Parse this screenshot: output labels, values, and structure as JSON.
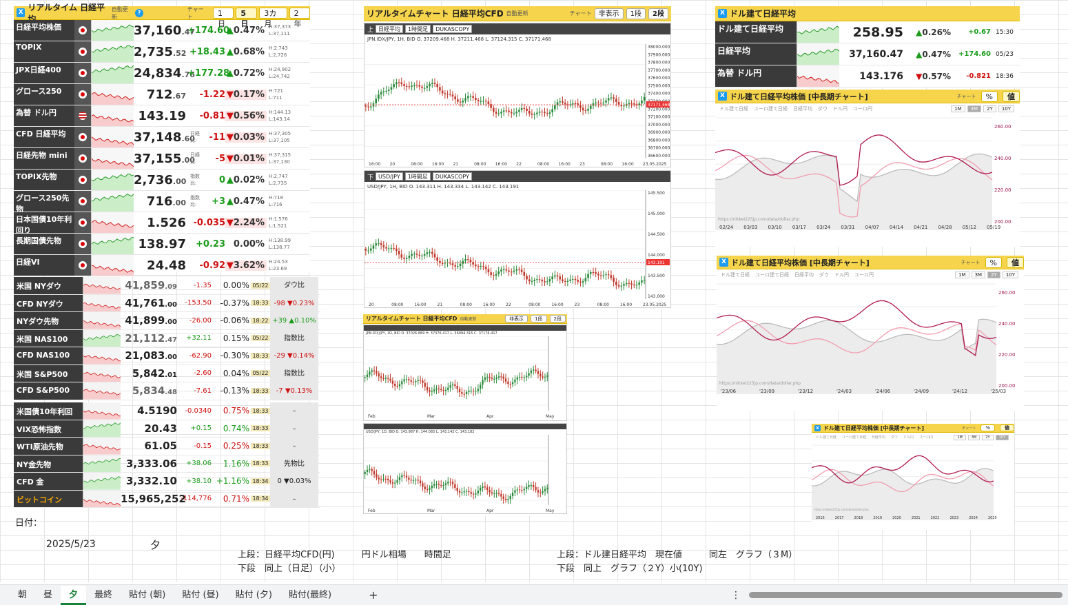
{
  "left_panel": {
    "title": "リアルタイム 日経平均",
    "auto": "自動更新",
    "help": "?",
    "chart_label": "チャート",
    "range_buttons": [
      "1日",
      "5日",
      "3カ月",
      "2年"
    ],
    "range_selected": "5日",
    "rows": [
      {
        "name": "日経平均株価",
        "sub": "寄与度",
        "date": "05/23",
        "price": "37,160",
        "dec": ".47",
        "chg": "+174.60",
        "pct": "0.47%",
        "dir": "up",
        "h": "H:37,373",
        "l": "L:37,111"
      },
      {
        "name": "TOPIX",
        "sub": "Y!",
        "date": "05/23",
        "price": "2,735",
        "dec": ".52",
        "chg": "+18.43",
        "pct": "0.68%",
        "dir": "up",
        "h": "H:2,743",
        "l": "L:2,726"
      },
      {
        "name": "JPX日経400",
        "sub": "",
        "date": "05/23",
        "price": "24,834",
        "dec": ".76",
        "chg": "+177.28",
        "pct": "0.72%",
        "dir": "up",
        "h": "H:24,902",
        "l": "L:24,742"
      },
      {
        "name": "グロース250",
        "sub": "",
        "date": "05/23",
        "price": "712",
        "dec": ".67",
        "chg": "-1.22",
        "pct": "0.17%",
        "dir": "dn",
        "h": "H:721",
        "l": "L:711"
      },
      {
        "name": "為替 ドル円",
        "sub": "為替",
        "date": "",
        "price": "143.19",
        "dec": "",
        "chg": "-0.81",
        "pct": "0.56%",
        "dir": "dn",
        "h": "H:144.13",
        "l": "L:143.14"
      },
      {
        "name": "CFD 日経平均",
        "sub": "",
        "date": "18:33",
        "price": "37,148",
        "dec": ".60",
        "chg": "-11",
        "pct": "0.03%",
        "dir": "dn",
        "label": "日経比:",
        "h": "H:37,305",
        "l": "L:37,105"
      },
      {
        "name": "日経先物 mini",
        "sub": "日経先物",
        "date": "18:33",
        "price": "37,155",
        "dec": ".00",
        "chg": "-5",
        "pct": "0.01%",
        "dir": "dn",
        "label": "日経比:",
        "h": "H:37,315",
        "l": "L:37,130"
      },
      {
        "name": "TOPIX先物",
        "sub": "",
        "date": "18:33",
        "price": "2,736",
        "dec": ".00",
        "chg": "0",
        "pct": "0.02%",
        "dir": "up",
        "label": "指数比:",
        "h": "H:2,747",
        "l": "L:2,735"
      },
      {
        "name": "グロース250先物",
        "sub": "",
        "date": "18:25",
        "price": "716",
        "dec": ".00",
        "chg": "+3",
        "pct": "0.47%",
        "dir": "up",
        "label": "指数比:",
        "h": "H:718",
        "l": "L:716"
      },
      {
        "name": "日本国債10年利回り",
        "sub": "国債 債券",
        "date": "18:31",
        "price": "1.526",
        "dec": "",
        "chg": "-0.035",
        "pct": "2.24%",
        "dir": "dn",
        "h": "H:1.576",
        "l": "L:1.521"
      },
      {
        "name": "長期国債先物",
        "sub": "",
        "date": "18:12",
        "price": "138.97",
        "dec": "",
        "chg": "+0.23",
        "pct": "0.00%",
        "dir": "flat",
        "h": "H:138.99",
        "l": "L:138.77"
      },
      {
        "name": "日経VI",
        "sub": "恐怖指数",
        "date": "",
        "price": "24.48",
        "dec": "",
        "chg": "-0.92",
        "pct": "3.62%",
        "dir": "dn",
        "h": "H:24.53",
        "l": "L:23.69"
      }
    ]
  },
  "us_panel": {
    "rows": [
      {
        "name": "米国 NYダウ",
        "price": "41,859",
        "dec": ".09",
        "chg": "-1.35",
        "pct": "0.00%",
        "dir": "dn",
        "time": "05/22",
        "ext": "ダウ比",
        "ext_dir": "na"
      },
      {
        "name": "CFD NYダウ",
        "price": "41,761",
        "dec": ".00",
        "chg": "-153.50",
        "pct": "-0.37%",
        "dir": "dn",
        "time": "18:33",
        "ext": "-98 ▼0.23%",
        "ext_dir": "dn"
      },
      {
        "name": "NYダウ先物",
        "price": "41,899",
        "dec": ".00",
        "chg": "-26.00",
        "pct": "-0.06%",
        "dir": "dn",
        "time": "18:22",
        "ext": "+39 ▲0.10%",
        "ext_dir": "up"
      },
      {
        "name": "米国 NAS100",
        "price": "21,112",
        "dec": ".47",
        "chg": "+32.11",
        "pct": "0.15%",
        "dir": "up",
        "time": "05/22",
        "ext": "指数比",
        "ext_dir": "na"
      },
      {
        "name": "CFD NAS100",
        "price": "21,083",
        "dec": ".00",
        "chg": "-62.90",
        "pct": "-0.30%",
        "dir": "dn",
        "time": "18:33",
        "ext": "-29 ▼0.14%",
        "ext_dir": "dn"
      },
      {
        "name": "米国 S&P500",
        "price": "5,842",
        "dec": ".01",
        "chg": "-2.60",
        "pct": "0.04%",
        "dir": "dn",
        "time": "05/22",
        "ext": "指数比",
        "ext_dir": "na"
      },
      {
        "name": "CFD S&P500",
        "price": "5,834",
        "dec": ".48",
        "chg": "-7.61",
        "pct": "-0.13%",
        "dir": "dn",
        "time": "18:33",
        "ext": "-7 ▼0.13%",
        "ext_dir": "dn"
      }
    ]
  },
  "misc_panel": {
    "rows": [
      {
        "name": "米国債10年利回",
        "price": "4.5190",
        "chg": "-0.0340",
        "pct": "0.75%",
        "dir": "dn",
        "time": "18:33",
        "ext": "–"
      },
      {
        "name": "VIX恐怖指数",
        "price": "20.43",
        "chg": "+0.15",
        "pct": "0.74%",
        "dir": "up",
        "time": "18:33",
        "ext": "–"
      },
      {
        "name": "WTI原油先物",
        "price": "61.05",
        "chg": "-0.15",
        "pct": "0.25%",
        "dir": "dn",
        "time": "18:33",
        "ext": "–"
      },
      {
        "name": "NY金先物",
        "price": "3,333.06",
        "chg": "+38.06",
        "pct": "1.16%",
        "dir": "up",
        "time": "18:33",
        "ext": "先物比"
      },
      {
        "name": "CFD 金",
        "price": "3,332.10",
        "chg": "+38.10",
        "pct": "+1.16%",
        "dir": "up",
        "time": "18:34",
        "ext": "0 ▼0.03%"
      },
      {
        "name": "ビットコイン",
        "price": "15,965,252",
        "chg": "-114,776",
        "pct": "0.71%",
        "dir": "dn",
        "time": "18:34",
        "ext": "–"
      }
    ]
  },
  "sheet": {
    "date_label": "日付：",
    "date_value": "2025/5/23",
    "session": "夕",
    "note_left_1": "上段：日経平均CFD(円)　　　円ドル相場　　時間足",
    "note_left_2": "下段　同上（日足）（小）",
    "note_right_1": "上段：ドル建日経平均　現在値　　　同左　グラフ（３M）",
    "note_right_2": "下段　同上　グラフ（２Y）小(10Y)"
  },
  "rt_chart": {
    "title": "リアルタイムチャート 日経平均CFD",
    "auto": "自動更新",
    "chart_label": "チャート",
    "buttons": [
      "非表示",
      "1段",
      "2段"
    ],
    "upper": {
      "tag": "上",
      "symbol": "日経平均",
      "interval": "1時間足",
      "source": "DUKASCOPY",
      "ohlc": "JPN.IDX/JPY, 1H, BID   O. 37209.468 H. 37211.468 L. 37124.315 C. 37171.468",
      "y_ticks": [
        "38000.000",
        "37900.000",
        "37800.000",
        "37700.000",
        "37600.000",
        "37500.000",
        "37400.000",
        "37300.000",
        "37200.000",
        "37100.000",
        "37000.000",
        "36900.000",
        "36800.000",
        "36700.000",
        "36600.000"
      ],
      "last": "37171.468",
      "x_ticks": [
        "16:00",
        "20",
        "08:00",
        "16:00",
        "21",
        "08:00",
        "16:00",
        "22",
        "08:00",
        "16:00",
        "23",
        "08:00",
        "16:00",
        "23.05.2025"
      ]
    },
    "lower": {
      "tag": "下",
      "symbol": "USD/JPY",
      "interval": "1時間足",
      "source": "DUKASCOPY",
      "ohlc": "USD/JPY, 1H, BID   O. 143.311 H. 143.334 L. 143.142 C. 143.191",
      "y_ticks": [
        "145.500",
        "145.000",
        "144.500",
        "144.000",
        "143.500",
        "143.000"
      ],
      "last": "143.191",
      "x_ticks": [
        "20",
        "08:00",
        "16:00",
        "21",
        "08:00",
        "16:00",
        "22",
        "08:00",
        "16:00",
        "23",
        "08:00",
        "16:00",
        "23.05.2025"
      ]
    },
    "provider": "提供元：",
    "provider_name": "DUKASCOPY"
  },
  "rt_chart_small": {
    "title": "リアルタイムチャート 日経平均CFD",
    "auto": "自動更新",
    "buttons": [
      "非表示",
      "1段",
      "2段"
    ],
    "upper_ohlc": "JPN.IDX/JPY, 1D, BID   O. 37026.889 H. 37376.417 L. 36994.315 C. 37176.417",
    "lower_ohlc": "USD/JPY, 1D, BID   O. 143.987 H. 144.083 L. 143.142 C. 143.182",
    "months": [
      "Feb",
      "Mar",
      "Apr",
      "May"
    ]
  },
  "dollar_panel": {
    "title": "ドル建て日経平均",
    "rows": [
      {
        "name": "ドル建て日経平均",
        "sub": "",
        "price": "258.95",
        "pct": "0.26%",
        "chg": "+0.67",
        "time": "15:30",
        "dir": "up"
      },
      {
        "name": "日経平均",
        "sub": "日経平均",
        "price": "37,160.47",
        "pct": "0.47%",
        "chg": "+174.60",
        "time": "05/23",
        "dir": "up"
      },
      {
        "name": "為替 ドル円",
        "sub": "FX為替",
        "price": "143.176",
        "pct": "0.57%",
        "chg": "-0.821",
        "time": "18:36",
        "dir": "dn"
      }
    ]
  },
  "dollar_charts": [
    {
      "title": "ドル建て日経平均株価 [中長期チャート]",
      "chart_label": "チャート",
      "btns": [
        "%",
        "値"
      ],
      "legend": [
        "ドル建て日経",
        "ユーロ建て日経",
        "日経平均",
        "ダウ",
        "ドル円",
        "ユーロ円"
      ],
      "ranges": [
        "1M",
        "3M",
        "2Y",
        "10Y"
      ],
      "range_on": "3M",
      "y_ticks": [
        "260.00",
        "240.00",
        "220.00",
        "200.00"
      ],
      "y2_ticks": [
        "40.000",
        "150.00",
        "145.00",
        "140.00"
      ],
      "x_ticks": [
        "02/24",
        "03/03",
        "03/10",
        "03/17",
        "03/24",
        "03/31",
        "04/07",
        "04/14",
        "04/21",
        "04/28",
        "05/12",
        "05/19"
      ],
      "url": "https://nikkei225jp.com/data/dollar.php"
    },
    {
      "title": "ドル建て日経平均株価 [中長期チャート]",
      "chart_label": "チャート",
      "btns": [
        "%",
        "値"
      ],
      "legend": [
        "ドル建て日経",
        "ユーロ建て日経",
        "日経平均",
        "ダウ",
        "ドル円",
        "ユーロ円"
      ],
      "ranges": [
        "1M",
        "3M",
        "2Y",
        "10Y"
      ],
      "range_on": "2Y",
      "y_ticks": [
        "260.00",
        "240.00",
        "220.00",
        "200.00"
      ],
      "x_ticks": [
        "'23/06",
        "'23/09",
        "'23/12",
        "'24/03",
        "'24/06",
        "'24/09",
        "'24/12",
        "'25/03"
      ],
      "url": "https://nikkei225jp.com/data/dollar.php"
    },
    {
      "title": "ドル建て日経平均株価 [中長期チャート]",
      "chart_label": "チャート",
      "btns": [
        "%",
        "値"
      ],
      "legend": [
        "ドル建て日経",
        "ユーロ建て日経",
        "日経平均",
        "ダウ",
        "ドル円",
        "ユーロ円"
      ],
      "ranges": [
        "1M",
        "3M",
        "2Y",
        "10Y"
      ],
      "range_on": "10Y",
      "x_ticks": [
        "2016",
        "2017",
        "2018",
        "2019",
        "2020",
        "2021",
        "2022",
        "2023",
        "2024",
        "2025"
      ],
      "url": "https://nikkei225jp.com/data/dollar.php"
    }
  ],
  "tabs": [
    "朝",
    "昼",
    "夕",
    "最終",
    "貼付 (朝)",
    "貼付 (昼)",
    "貼付 (夕)",
    "貼付(最終)"
  ],
  "tab_selected": "夕",
  "add_tab": "+",
  "more_icon": "⋮"
}
